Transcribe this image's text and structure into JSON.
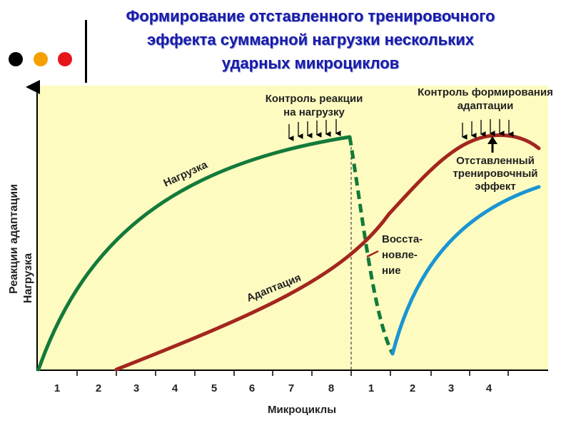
{
  "title": {
    "line1": "Формирование отставленного тренировочного",
    "line2": "эффекта суммарной нагрузки нескольких",
    "line3": "ударных микроциклов"
  },
  "colors": {
    "title": "#1a1aa8",
    "plot_bg": "#fdfbc0",
    "load": "#137a3a",
    "adaptation": "#a3261e",
    "recovery": "#1a95d3",
    "dot_black": "#000000",
    "dot_orange": "#f5a000",
    "dot_red": "#e8141c"
  },
  "decor_dots": [
    "dot_black",
    "dot_orange",
    "dot_red"
  ],
  "y_axis": {
    "line1": "Реакции адаптации",
    "line2": "Нагрузка"
  },
  "x_axis": {
    "label": "Микроциклы",
    "ticks_first_block": [
      "1",
      "2",
      "3",
      "4",
      "5",
      "6",
      "7",
      "8"
    ],
    "ticks_second_block": [
      "1",
      "2",
      "3",
      "4"
    ]
  },
  "labels": {
    "load": "Нагрузка",
    "adaptation": "Адаптация",
    "recovery_1": "Восста-",
    "recovery_2": "новле-",
    "recovery_3": "ние",
    "control_load_1": "Контроль реакции",
    "control_load_2": "на нагрузку",
    "control_adapt_1": "Контроль формирования",
    "control_adapt_2": "адаптации",
    "delayed_1": "Отставленный",
    "delayed_2": "тренировочный",
    "delayed_3": "эффект"
  },
  "arrows": {
    "control_load_count": 6,
    "control_adapt_count": 6
  }
}
